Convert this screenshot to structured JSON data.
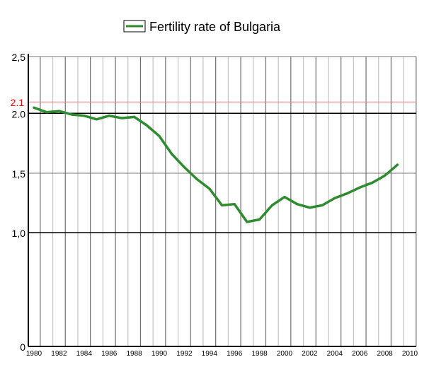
{
  "chart_data": {
    "type": "line",
    "title": "",
    "legend": {
      "entries": [
        "Fertility rate of Bulgaria"
      ],
      "placement": "top-center"
    },
    "xlabel": "",
    "ylabel": "",
    "xlim": [
      1980,
      2010
    ],
    "ylim": [
      0,
      2.5
    ],
    "grid": true,
    "x_tick_labels": [
      "1980",
      "1982",
      "1984",
      "1986",
      "1988",
      "1990",
      "1992",
      "1994",
      "1996",
      "1998",
      "2000",
      "2002",
      "2004",
      "2006",
      "2008",
      "2010"
    ],
    "y_tick_labels": [
      {
        "value": 0,
        "label": "0"
      },
      {
        "value": 1.0,
        "label": "1,0"
      },
      {
        "value": 1.5,
        "label": "1,5"
      },
      {
        "value": 2.0,
        "label": "2.0"
      },
      {
        "value": 2.5,
        "label": "2,5"
      }
    ],
    "reference_line": {
      "value": 2.1,
      "label": "2.1",
      "color": "#ff0000"
    },
    "series": [
      {
        "name": "Fertility rate of Bulgaria",
        "color": "#2e8b2e",
        "x": [
          1980,
          1981,
          1982,
          1983,
          1984,
          1985,
          1986,
          1987,
          1988,
          1989,
          1990,
          1991,
          1992,
          1993,
          1994,
          1995,
          1996,
          1997,
          1998,
          1999,
          2000,
          2001,
          2002,
          2003,
          2004,
          2005,
          2006,
          2007,
          2008,
          2009
        ],
        "y": [
          2.05,
          2.01,
          2.02,
          1.99,
          1.98,
          1.95,
          1.98,
          1.96,
          1.97,
          1.9,
          1.81,
          1.66,
          1.55,
          1.45,
          1.37,
          1.23,
          1.24,
          1.09,
          1.11,
          1.23,
          1.3,
          1.24,
          1.21,
          1.23,
          1.29,
          1.33,
          1.38,
          1.42,
          1.48,
          1.57
        ]
      }
    ]
  }
}
